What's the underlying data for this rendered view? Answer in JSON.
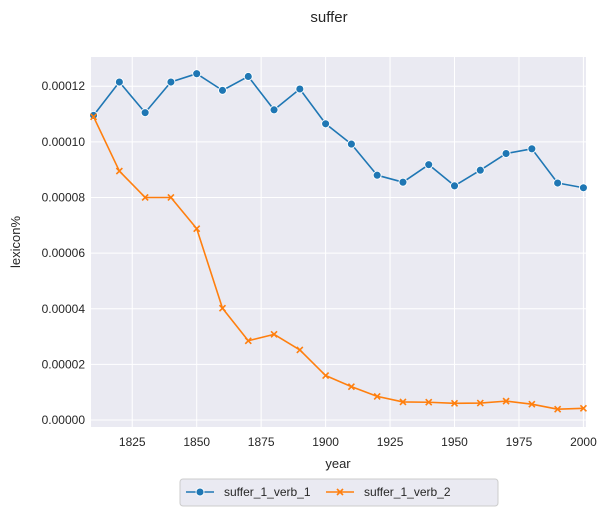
{
  "chart_data": {
    "type": "line",
    "title": "suffer",
    "xlabel": "year",
    "ylabel": "lexicon%",
    "xlim": [
      1809,
      2001
    ],
    "ylim": [
      -2.5e-06,
      0.0001305
    ],
    "x_ticks": [
      1825,
      1850,
      1875,
      1900,
      1925,
      1950,
      1975,
      2000
    ],
    "x_tick_labels": [
      "1825",
      "1850",
      "1875",
      "1900",
      "1925",
      "1950",
      "1975",
      "2000"
    ],
    "y_ticks": [
      0,
      2e-05,
      4e-05,
      6e-05,
      8e-05,
      0.0001,
      0.00012
    ],
    "y_tick_labels": [
      "0.00000",
      "0.00002",
      "0.00004",
      "0.00006",
      "0.00008",
      "0.00010",
      "0.00012"
    ],
    "grid": true,
    "legend_position": "bottom-center",
    "x": [
      1810,
      1820,
      1830,
      1840,
      1850,
      1860,
      1870,
      1880,
      1890,
      1900,
      1910,
      1920,
      1930,
      1940,
      1950,
      1960,
      1970,
      1980,
      1990,
      2000
    ],
    "series": [
      {
        "name": "suffer_1_verb_1",
        "color": "#1f77b4",
        "marker": "circle",
        "values": [
          0.0001095,
          0.0001215,
          0.0001105,
          0.0001215,
          0.0001245,
          0.0001185,
          0.0001235,
          0.0001115,
          0.000119,
          0.0001065,
          9.92e-05,
          8.8e-05,
          8.55e-05,
          9.18e-05,
          8.42e-05,
          8.98e-05,
          9.58e-05,
          9.75e-05,
          8.52e-05,
          8.35e-05
        ]
      },
      {
        "name": "suffer_1_verb_2",
        "color": "#ff7f0e",
        "marker": "x",
        "values": [
          0.000109,
          8.95e-05,
          8e-05,
          8e-05,
          6.88e-05,
          4.02e-05,
          2.85e-05,
          3.08e-05,
          2.52e-05,
          1.6e-05,
          1.2e-05,
          8.5e-06,
          6.5e-06,
          6.4e-06,
          6e-06,
          6.1e-06,
          6.8e-06,
          5.7e-06,
          3.9e-06,
          4.2e-06
        ]
      }
    ]
  }
}
